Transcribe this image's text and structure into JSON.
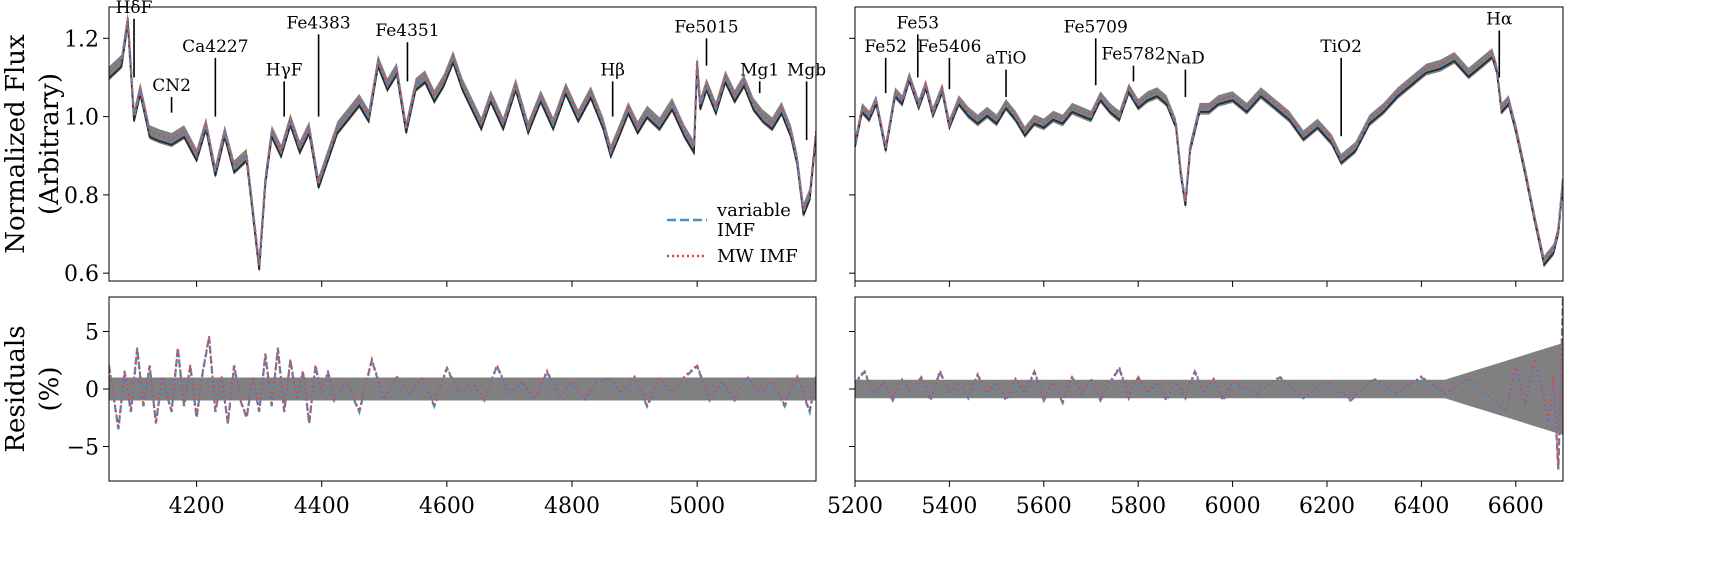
{
  "figure": {
    "legend": [
      {
        "name": "variable IMF",
        "line1": "variable",
        "line2": "IMF",
        "color": "#4a90c4",
        "style": "dashed"
      },
      {
        "name": "MW IMF",
        "line1": "MW IMF",
        "color": "#e8413a",
        "style": "dotted"
      }
    ],
    "colors": {
      "observed": "#2a2a2a",
      "uncertainty_band": "#808080",
      "variable_imf": "#4a90c4",
      "mw_imf": "#e8413a"
    }
  },
  "chart_data": [
    {
      "panel": "flux-left",
      "type": "line",
      "ylabel_line1": "Normalized Flux",
      "ylabel_line2": "(Arbitrary)",
      "xlim": [
        4060,
        5190
      ],
      "ylim": [
        0.58,
        1.28
      ],
      "yticks": [
        "0.6",
        "0.8",
        "1.0",
        "1.2"
      ],
      "yticks_values": [
        0.6,
        0.8,
        1.0,
        1.2
      ],
      "xticks_values": [
        4200,
        4400,
        4600,
        4800,
        5000
      ],
      "series": [
        {
          "name": "variable IMF"
        },
        {
          "name": "MW IMF"
        }
      ],
      "x": [
        4060,
        4080,
        4090,
        4100,
        4110,
        4125,
        4140,
        4160,
        4180,
        4200,
        4215,
        4230,
        4245,
        4260,
        4280,
        4300,
        4310,
        4320,
        4335,
        4350,
        4365,
        4380,
        4395,
        4410,
        4425,
        4440,
        4460,
        4475,
        4490,
        4505,
        4520,
        4535,
        4550,
        4565,
        4580,
        4595,
        4610,
        4625,
        4640,
        4655,
        4670,
        4690,
        4710,
        4730,
        4750,
        4770,
        4790,
        4810,
        4830,
        4850,
        4862,
        4875,
        4890,
        4905,
        4920,
        4940,
        4960,
        4980,
        4995,
        5000,
        5005,
        5015,
        5030,
        5045,
        5060,
        5075,
        5090,
        5105,
        5120,
        5135,
        5150,
        5160,
        5170,
        5180,
        5190
      ],
      "values": [
        1.11,
        1.14,
        1.25,
        1.0,
        1.07,
        0.96,
        0.95,
        0.94,
        0.96,
        0.9,
        0.98,
        0.86,
        0.96,
        0.87,
        0.9,
        0.62,
        0.84,
        0.96,
        0.91,
        0.99,
        0.92,
        0.97,
        0.83,
        0.9,
        0.97,
        1.0,
        1.04,
        1.0,
        1.14,
        1.08,
        1.12,
        0.97,
        1.08,
        1.1,
        1.05,
        1.09,
        1.15,
        1.08,
        1.03,
        0.98,
        1.05,
        0.98,
        1.08,
        0.97,
        1.05,
        0.98,
        1.07,
        1.0,
        1.06,
        0.98,
        0.91,
        0.96,
        1.02,
        0.97,
        1.01,
        0.98,
        1.03,
        0.96,
        0.92,
        1.14,
        1.03,
        1.08,
        1.02,
        1.1,
        1.05,
        1.09,
        1.03,
        1.0,
        0.98,
        1.02,
        0.96,
        0.89,
        0.76,
        0.8,
        0.96
      ],
      "band_halfwidth": 0.018,
      "offsets": {
        "observed": -0.012,
        "mw_imf": 0.003
      },
      "annotations": [
        {
          "label": "HδF",
          "x": 4100,
          "y_tip": 1.1,
          "y_top": 1.25
        },
        {
          "label": "CN2",
          "x": 4160,
          "y_tip": 1.01,
          "y_top": 1.05
        },
        {
          "label": "Ca4227",
          "x": 4230,
          "y_tip": 1.0,
          "y_top": 1.15
        },
        {
          "label": "HγF",
          "x": 4340,
          "y_tip": 1.0,
          "y_top": 1.09
        },
        {
          "label": "Fe4383",
          "x": 4395,
          "y_tip": 1.0,
          "y_top": 1.21
        },
        {
          "label": "Fe4351",
          "x": 4537,
          "y_tip": 1.09,
          "y_top": 1.19
        },
        {
          "label": "Hβ",
          "x": 4865,
          "y_tip": 1.0,
          "y_top": 1.09
        },
        {
          "label": "Fe5015",
          "x": 5015,
          "y_tip": 1.13,
          "y_top": 1.2
        },
        {
          "label": "Mg1",
          "x": 5100,
          "y_tip": 1.06,
          "y_top": 1.09
        },
        {
          "label": "Mgb",
          "x": 5175,
          "y_tip": 0.94,
          "y_top": 1.09
        }
      ]
    },
    {
      "panel": "flux-right",
      "type": "line",
      "xlim": [
        5200,
        6700
      ],
      "ylim": [
        0.58,
        1.28
      ],
      "yticks_values": [
        0.6,
        0.8,
        1.0,
        1.2
      ],
      "xticks_values": [
        5200,
        5400,
        5600,
        5800,
        6000,
        6200,
        6400,
        6600
      ],
      "series": [
        {
          "name": "variable IMF"
        },
        {
          "name": "MW IMF"
        }
      ],
      "x": [
        5200,
        5215,
        5230,
        5245,
        5265,
        5285,
        5300,
        5315,
        5335,
        5350,
        5365,
        5385,
        5400,
        5420,
        5440,
        5460,
        5480,
        5500,
        5520,
        5540,
        5560,
        5580,
        5600,
        5620,
        5640,
        5660,
        5680,
        5700,
        5720,
        5740,
        5760,
        5780,
        5800,
        5820,
        5840,
        5860,
        5880,
        5890,
        5900,
        5910,
        5930,
        5950,
        5970,
        6000,
        6030,
        6060,
        6090,
        6120,
        6150,
        6180,
        6210,
        6230,
        6260,
        6290,
        6320,
        6350,
        6380,
        6410,
        6440,
        6470,
        6500,
        6530,
        6550,
        6560,
        6570,
        6585,
        6600,
        6620,
        6640,
        6660,
        6680,
        6690,
        6700
      ],
      "values": [
        0.93,
        1.02,
        1.0,
        1.04,
        0.92,
        1.06,
        1.04,
        1.1,
        1.03,
        1.08,
        1.01,
        1.07,
        0.98,
        1.04,
        1.01,
        0.99,
        1.01,
        0.99,
        1.03,
        1.0,
        0.96,
        0.99,
        0.98,
        1.0,
        0.99,
        1.02,
        1.01,
        1.0,
        1.05,
        1.02,
        1.0,
        1.07,
        1.03,
        1.05,
        1.06,
        1.04,
        0.98,
        0.86,
        0.78,
        0.92,
        1.02,
        1.02,
        1.04,
        1.05,
        1.02,
        1.06,
        1.03,
        1.0,
        0.95,
        0.98,
        0.94,
        0.89,
        0.92,
        0.99,
        1.02,
        1.06,
        1.09,
        1.12,
        1.13,
        1.15,
        1.11,
        1.14,
        1.16,
        1.12,
        1.02,
        1.04,
        0.97,
        0.86,
        0.74,
        0.63,
        0.66,
        0.71,
        0.84
      ],
      "band_halfwidth": 0.015,
      "offsets": {
        "observed": -0.008,
        "mw_imf": 0.003
      },
      "annotations": [
        {
          "label": "Fe52",
          "x": 5265,
          "y_tip": 1.06,
          "y_top": 1.15
        },
        {
          "label": "Fe53",
          "x": 5333,
          "y_tip": 1.1,
          "y_top": 1.21
        },
        {
          "label": "Fe5406",
          "x": 5400,
          "y_tip": 1.07,
          "y_top": 1.15
        },
        {
          "label": "aTiO",
          "x": 5520,
          "y_tip": 1.05,
          "y_top": 1.12
        },
        {
          "label": "Fe5709",
          "x": 5710,
          "y_tip": 1.08,
          "y_top": 1.2
        },
        {
          "label": "Fe5782",
          "x": 5790,
          "y_tip": 1.09,
          "y_top": 1.13
        },
        {
          "label": "NaD",
          "x": 5900,
          "y_tip": 1.05,
          "y_top": 1.12
        },
        {
          "label": "TiO2",
          "x": 6230,
          "y_tip": 0.95,
          "y_top": 1.15
        },
        {
          "label": "Hα",
          "x": 6565,
          "y_tip": 1.1,
          "y_top": 1.22
        }
      ]
    },
    {
      "panel": "resid-left",
      "type": "line",
      "ylabel_line1": "Residuals",
      "ylabel_line2": "(%)",
      "xlim": [
        4060,
        5190
      ],
      "ylim": [
        -8,
        8
      ],
      "yticks": [
        "−5",
        "0",
        "5"
      ],
      "yticks_values": [
        -5,
        0,
        5
      ],
      "xticks": [
        "4200",
        "4400",
        "4600",
        "4800",
        "5000"
      ],
      "xticks_values": [
        4200,
        4400,
        4600,
        4800,
        5000
      ],
      "series": [
        {
          "name": "variable IMF"
        },
        {
          "name": "MW IMF"
        }
      ],
      "x": [
        4060,
        4075,
        4085,
        4095,
        4105,
        4115,
        4125,
        4135,
        4145,
        4160,
        4170,
        4180,
        4190,
        4200,
        4210,
        4220,
        4230,
        4240,
        4250,
        4260,
        4270,
        4280,
        4290,
        4300,
        4310,
        4320,
        4330,
        4340,
        4350,
        4360,
        4370,
        4380,
        4390,
        4400,
        4410,
        4420,
        4440,
        4460,
        4480,
        4500,
        4520,
        4540,
        4560,
        4580,
        4600,
        4620,
        4640,
        4660,
        4680,
        4700,
        4720,
        4740,
        4760,
        4780,
        4800,
        4820,
        4840,
        4860,
        4880,
        4900,
        4920,
        4940,
        4960,
        4980,
        5000,
        5020,
        5040,
        5060,
        5080,
        5100,
        5120,
        5140,
        5160,
        5180,
        5190
      ],
      "values": [
        2,
        -3.5,
        1.5,
        -2,
        3.5,
        -1.5,
        2,
        -3,
        1,
        -2,
        3.5,
        -1.5,
        2,
        -2.5,
        1.5,
        4.5,
        -2,
        1,
        -3,
        2,
        -1,
        -2.5,
        1,
        -2,
        3,
        -1.5,
        3.5,
        -2,
        2.5,
        -1,
        1.5,
        -3,
        2,
        -0.5,
        1.5,
        -1,
        0.5,
        -2,
        2.5,
        -1,
        1,
        -0.5,
        0.8,
        -1.5,
        1.8,
        -0.5,
        0.5,
        -1,
        2,
        -0.5,
        0.5,
        -1,
        1.5,
        -0.8,
        0.5,
        -1,
        0.5,
        0.8,
        -0.5,
        1,
        -1.5,
        0.8,
        -0.5,
        1,
        2,
        -1,
        0.5,
        -1,
        1,
        -0.5,
        0.5,
        -1.5,
        1,
        -2,
        1
      ],
      "band_halfwidth": 1.0,
      "offsets": {
        "mw_imf": 0.1
      }
    },
    {
      "panel": "resid-right",
      "type": "line",
      "xlim": [
        5200,
        6700
      ],
      "ylim": [
        -8,
        8
      ],
      "yticks_values": [
        -5,
        0,
        5
      ],
      "xticks": [
        "5200",
        "5400",
        "5600",
        "5800",
        "6000",
        "6200",
        "6400",
        "6600"
      ],
      "xticks_values": [
        5200,
        5400,
        5600,
        5800,
        6000,
        6200,
        6400,
        6600
      ],
      "series": [
        {
          "name": "variable IMF"
        },
        {
          "name": "MW IMF"
        }
      ],
      "x": [
        5200,
        5220,
        5240,
        5260,
        5280,
        5300,
        5320,
        5340,
        5360,
        5380,
        5400,
        5420,
        5440,
        5460,
        5480,
        5500,
        5520,
        5540,
        5560,
        5580,
        5600,
        5620,
        5640,
        5660,
        5680,
        5700,
        5720,
        5740,
        5760,
        5780,
        5800,
        5820,
        5840,
        5860,
        5880,
        5900,
        5920,
        5940,
        5960,
        5980,
        6000,
        6050,
        6100,
        6150,
        6200,
        6250,
        6300,
        6350,
        6400,
        6450,
        6500,
        6550,
        6580,
        6600,
        6620,
        6640,
        6660,
        6670,
        6680,
        6690,
        6700
      ],
      "values": [
        0.5,
        1.5,
        -0.5,
        0.5,
        -1,
        0.8,
        -0.5,
        1,
        -1,
        1.5,
        -0.5,
        0.5,
        -0.8,
        1.2,
        -0.5,
        0.5,
        -1,
        0.8,
        -0.5,
        1.5,
        -1,
        0.5,
        -1.2,
        1,
        -0.5,
        0.8,
        -1,
        0.5,
        1.8,
        -0.8,
        1,
        -0.5,
        0.5,
        -1,
        0.5,
        -0.8,
        1.5,
        -0.5,
        0.8,
        -1,
        0.5,
        -0.5,
        1,
        -0.8,
        0.5,
        -1,
        0.8,
        -0.5,
        1,
        -0.5,
        0.8,
        -1,
        -2,
        2,
        -1.5,
        2.5,
        -1,
        -3,
        1,
        -7,
        8
      ],
      "band_halfwidth": 0.8,
      "band_growth": {
        "from_x": 6450,
        "to_halfwidth": 4.0
      },
      "offsets": {
        "mw_imf": 0.1
      }
    }
  ]
}
